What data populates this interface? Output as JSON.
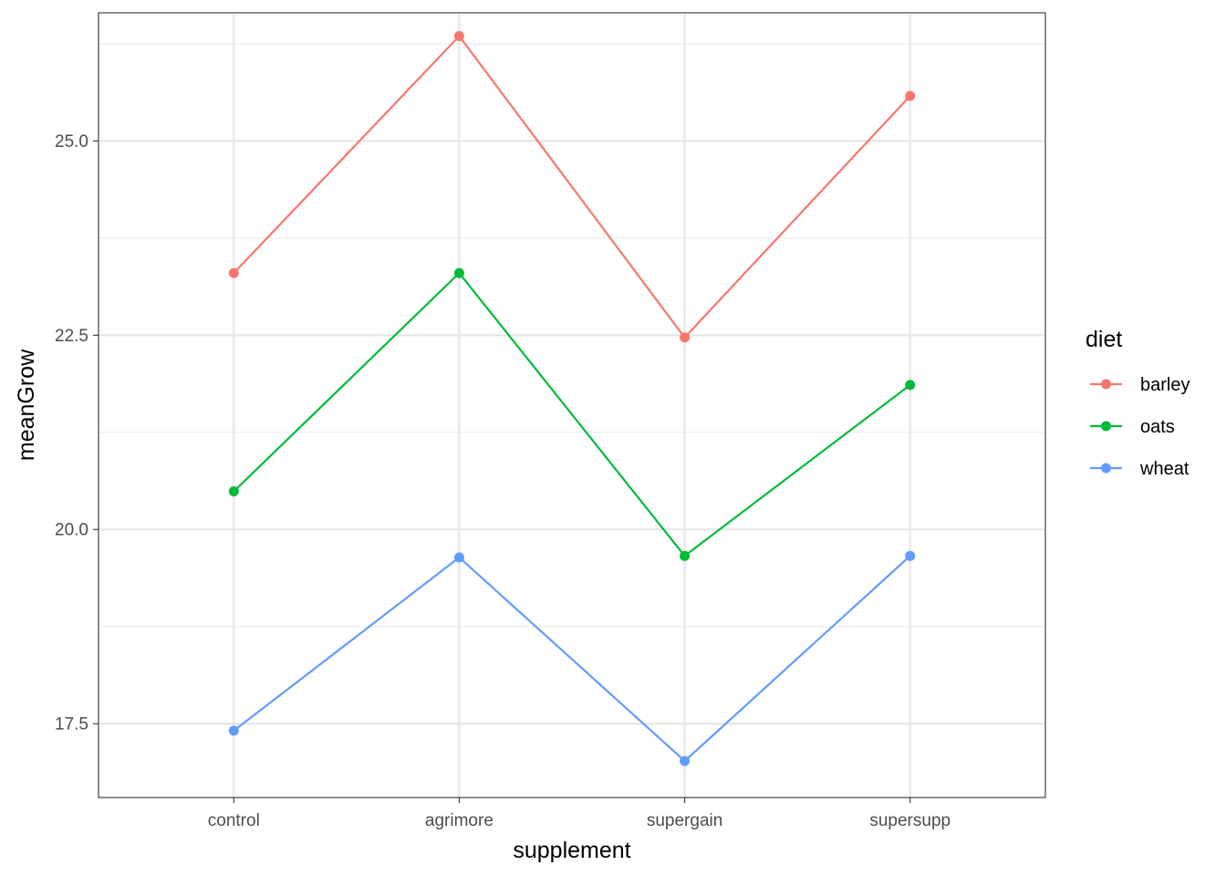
{
  "chart_data": {
    "type": "line",
    "title": "",
    "xlabel": "supplement",
    "ylabel": "meanGrow",
    "categories": [
      "control",
      "agrimore",
      "supergain",
      "supersupp"
    ],
    "ylim": [
      16.55,
      26.65
    ],
    "yticks": [
      17.5,
      20.0,
      22.5,
      25.0
    ],
    "ytick_labels": [
      "17.5",
      "20.0",
      "22.5",
      "25.0"
    ],
    "grid": true,
    "legend_title": "diet",
    "legend_position": "right",
    "series": [
      {
        "name": "barley",
        "color": "#F8766D",
        "values": [
          23.3,
          26.35,
          22.47,
          25.58
        ]
      },
      {
        "name": "oats",
        "color": "#00BA38",
        "values": [
          20.49,
          23.3,
          19.66,
          21.86
        ]
      },
      {
        "name": "wheat",
        "color": "#619CFF",
        "values": [
          17.41,
          19.64,
          17.02,
          19.66
        ]
      }
    ]
  }
}
